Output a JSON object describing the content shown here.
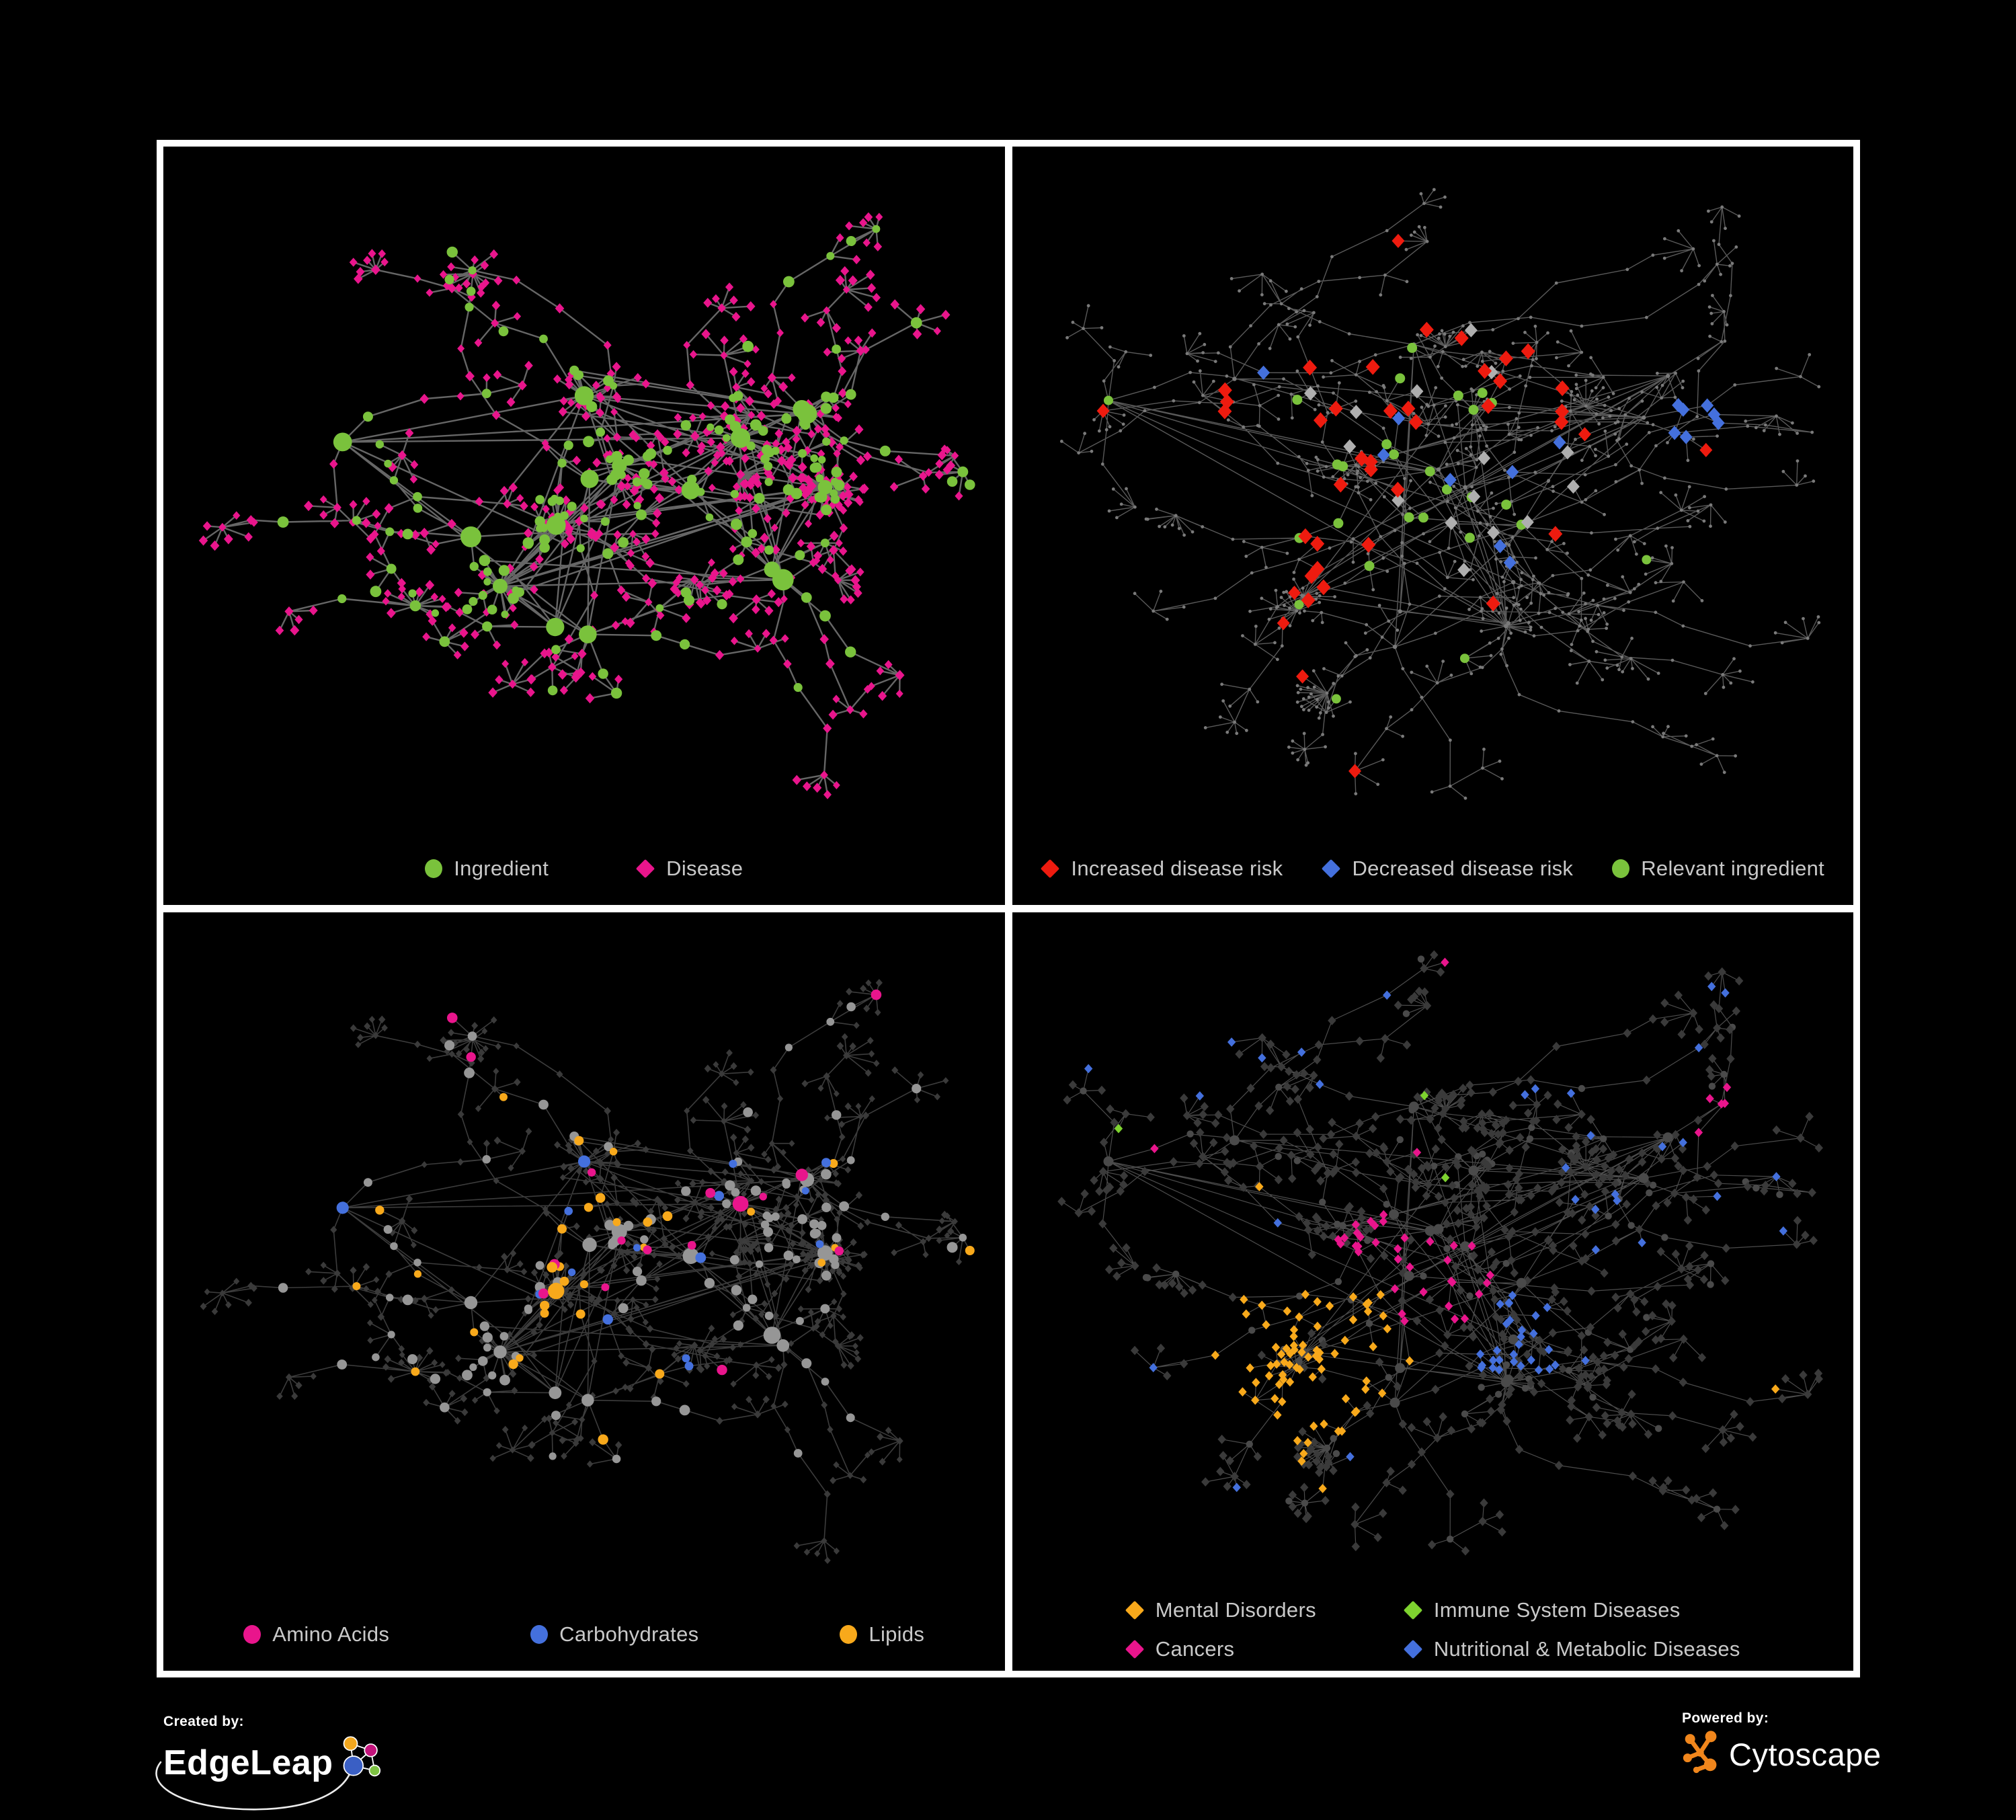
{
  "figure": {
    "background": "#000000",
    "panel_border_color": "#FFFFFF",
    "legend_text_color": "#C9C9C9"
  },
  "palette": {
    "green": "#7AC23C",
    "lime": "#7ED32F",
    "pink": "#E9158C",
    "red": "#EE1B0F",
    "blue": "#4470DD",
    "orange": "#F8A91B",
    "gray_dot": "#7A7A7A",
    "gray_diamond": "#AFAFAF",
    "gray_circle": "#969696",
    "dark_diamond": "#3A3A3A",
    "dark_circle": "#4A4A4A"
  },
  "panels": [
    {
      "id": "ingredient-disease",
      "layout": "A",
      "style": "ingredient_disease",
      "style_seed": 1001,
      "edge": {
        "color": "#6B6B6B",
        "width": 2.4,
        "opacity": 0.95
      },
      "legend": {
        "type": "row",
        "gap": 130,
        "items": [
          {
            "label": "Ingredient",
            "shape": "circle",
            "color": "#7AC23C"
          },
          {
            "label": "Disease",
            "shape": "diamond",
            "color": "#E9158C"
          }
        ]
      }
    },
    {
      "id": "disease-risk",
      "layout": "B",
      "style": "risk",
      "style_seed": 2002,
      "edge": {
        "color": "#636363",
        "width": 1.4,
        "opacity": 0.9
      },
      "legend": {
        "type": "row",
        "gap": 58,
        "items": [
          {
            "label": "Increased disease risk",
            "shape": "diamond",
            "color": "#EE1B0F"
          },
          {
            "label": "Decreased disease risk",
            "shape": "diamond",
            "color": "#4470DD"
          },
          {
            "label": "Relevant ingredient",
            "shape": "circle",
            "color": "#7AC23C"
          }
        ]
      }
    },
    {
      "id": "nutrient-categories",
      "layout": "A",
      "style": "nutrients",
      "style_seed": 3003,
      "edge": {
        "color": "#909090",
        "width": 1.6,
        "opacity": 0.42
      },
      "legend": {
        "type": "row",
        "gap": 210,
        "items": [
          {
            "label": "Amino Acids",
            "shape": "circle",
            "color": "#E9158C"
          },
          {
            "label": "Carbohydrates",
            "shape": "circle",
            "color": "#4470DD"
          },
          {
            "label": "Lipids",
            "shape": "circle",
            "color": "#F8A91B"
          }
        ]
      }
    },
    {
      "id": "disease-classes",
      "layout": "B",
      "style": "disease_classes",
      "style_seed": 4004,
      "edge": {
        "color": "#8A8A8A",
        "width": 1.2,
        "opacity": 0.55
      },
      "legend": {
        "type": "grid",
        "columns": 2,
        "column_gap": 130,
        "row_gap": 22,
        "items": [
          {
            "label": "Mental Disorders",
            "shape": "diamond",
            "color": "#F8A91B"
          },
          {
            "label": "Immune System Diseases",
            "shape": "diamond",
            "color": "#7ED32F"
          },
          {
            "label": "Cancers",
            "shape": "diamond",
            "color": "#E9158C"
          },
          {
            "label": "Nutritional & Metabolic Diseases",
            "shape": "diamond",
            "color": "#4470DD"
          }
        ]
      }
    }
  ],
  "network_render": {
    "layouts": {
      "A": {
        "seed": 1204,
        "hubs": 16,
        "hubSpread": 0.27,
        "stretchX": 1.25,
        "hubExtraLinks": 9,
        "balls": 7,
        "ballSize": 14,
        "ballIngredientP": 0.55,
        "branches": 54,
        "branchLen": 5,
        "chainIngredientP": 0.3,
        "leafIngredientP": 0.1,
        "leafMin": 3,
        "leafVar": 5,
        "superBursts": 3
      },
      "B": {
        "seed": 977,
        "hubs": 18,
        "hubSpread": 0.34,
        "stretchX": 1.28,
        "hubExtraLinks": 12,
        "balls": 3,
        "ballSize": 10,
        "ballIngredientP": 0.3,
        "branches": 72,
        "branchLen": 6,
        "chainIngredientP": 0.12,
        "leafIngredientP": 0.05,
        "leafMin": 3,
        "leafVar": 4,
        "superBursts": 4
      }
    }
  },
  "footer": {
    "created_by_label": "Created by:",
    "created_by_name": "EdgeLeap",
    "powered_by_label": "Powered by:",
    "powered_by_name": "Cytoscape",
    "edgeleap_icon_colors": [
      "#F2A71E",
      "#C4147C",
      "#3A5FC4",
      "#7DC242"
    ],
    "cytoscape_icon_color": "#F0861C"
  }
}
